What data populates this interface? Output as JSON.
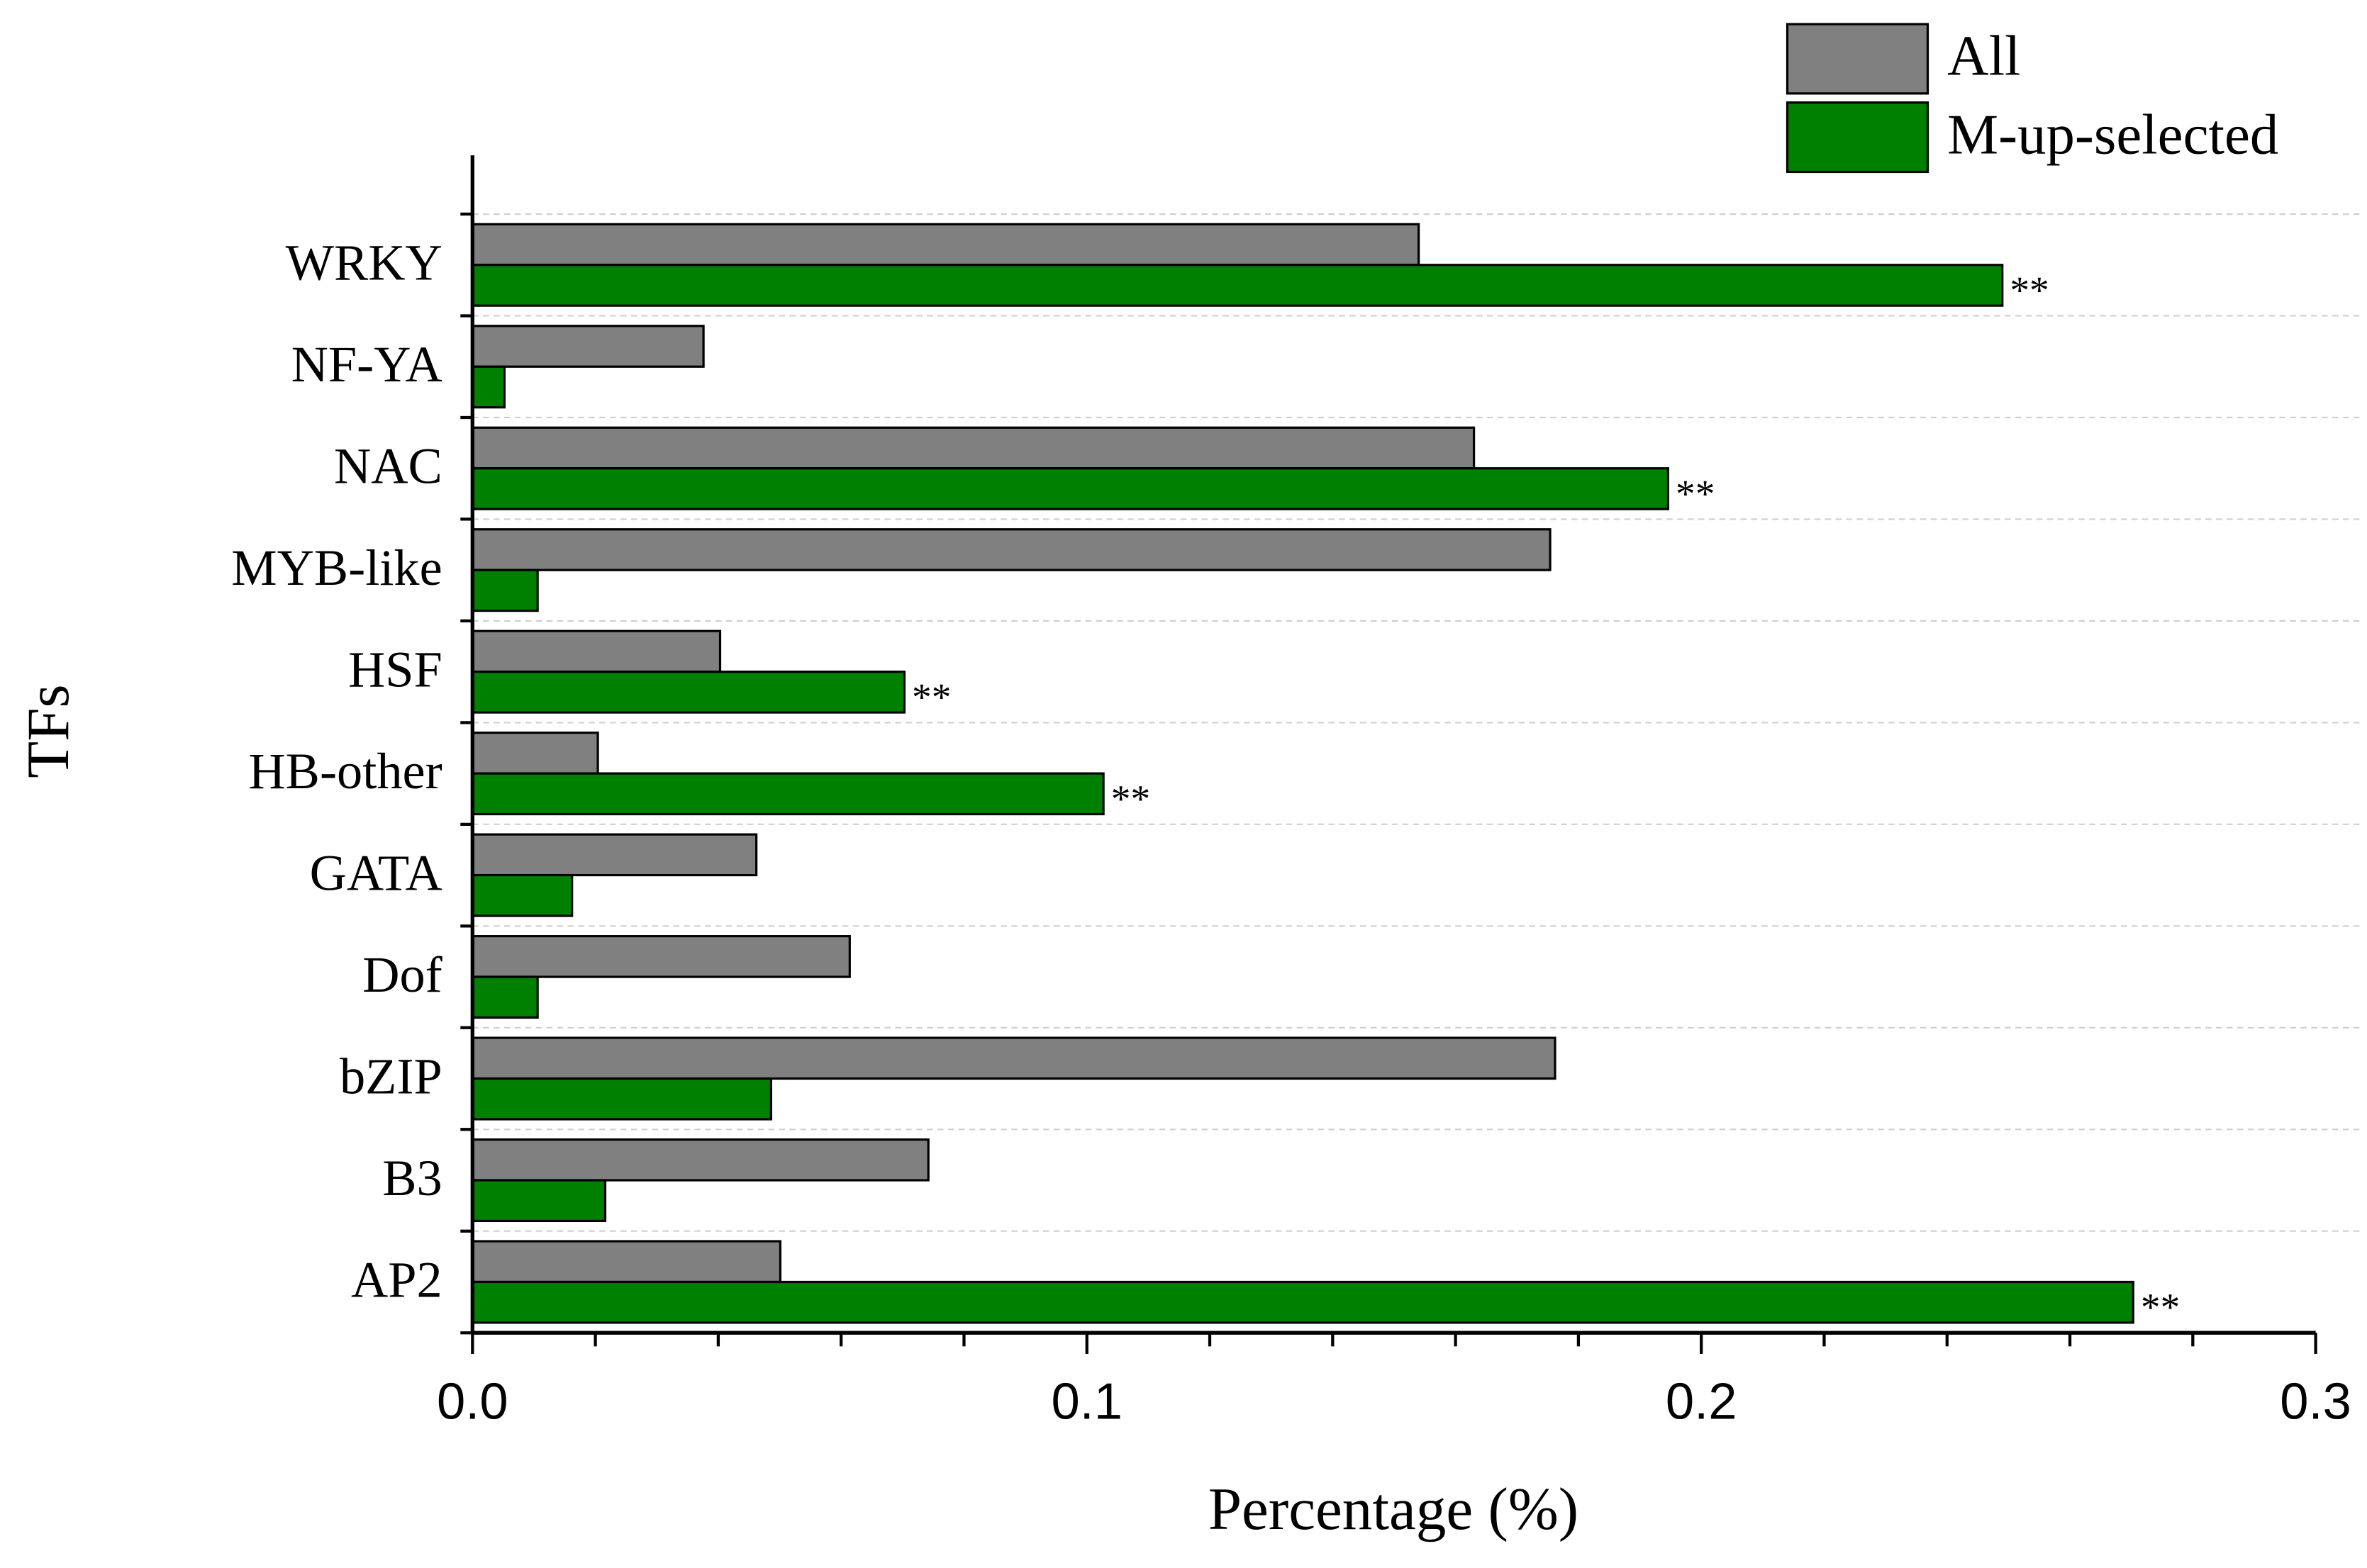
{
  "chart_data": {
    "type": "barh",
    "x_label": "Percentage (%)",
    "y_label": "TFs",
    "categories": [
      "WRKY",
      "NF-YA",
      "NAC",
      "MYB-like",
      "HSF",
      "HB-other",
      "GATA",
      "Dof",
      "bZIP",
      "B3",
      "AP2"
    ],
    "series": [
      {
        "name": "All",
        "color": "#808080",
        "values": [
          0.154,
          0.0376,
          0.163,
          0.1754,
          0.0403,
          0.0204,
          0.0462,
          0.0614,
          0.1762,
          0.0742,
          0.0501
        ]
      },
      {
        "name": "M-up-selected",
        "color": "#008000",
        "values": [
          0.249,
          0.0052,
          0.1946,
          0.0106,
          0.0703,
          0.1027,
          0.0162,
          0.0106,
          0.0486,
          0.0216,
          0.2703
        ],
        "annotations": [
          "**",
          null,
          "**",
          null,
          "**",
          "**",
          null,
          null,
          null,
          null,
          "**"
        ]
      }
    ],
    "xlim": [
      0,
      0.3
    ],
    "xticks": [
      {
        "value": 0,
        "label": "0.0"
      },
      0.1,
      0.2,
      0.3
    ],
    "xminorticks": [
      0.02,
      0.04,
      0.06,
      0.08,
      0.12,
      0.14,
      0.16,
      0.18,
      0.22,
      0.24,
      0.26,
      0.28
    ],
    "grid": true,
    "legend": "top-right"
  }
}
